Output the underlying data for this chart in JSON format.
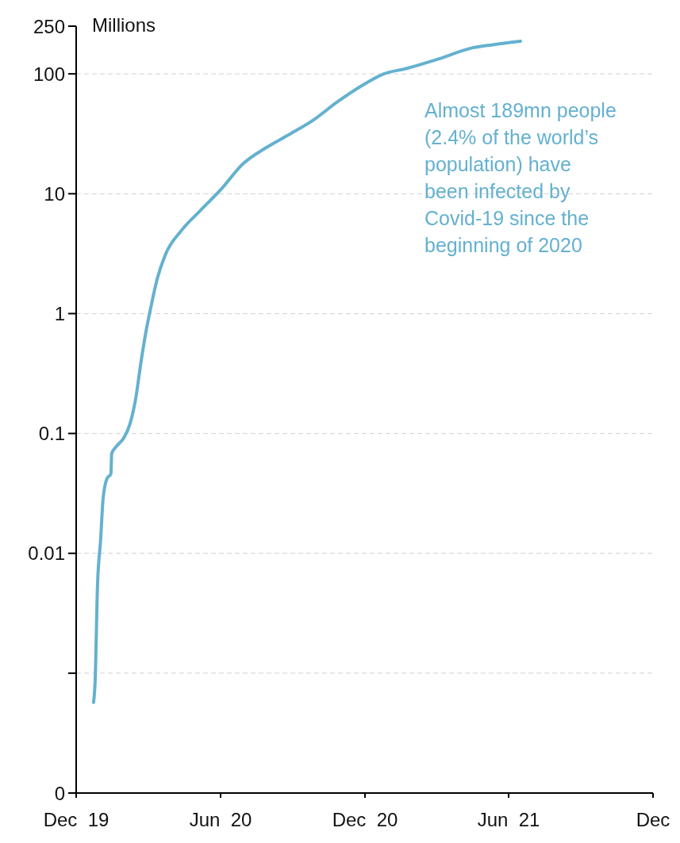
{
  "chart_data": {
    "type": "line",
    "ylabel": "Millions",
    "log": "y",
    "annotations": [
      "Almost 189mn people\n(2.4% of the world’s\npopulation) have\nbeen infected by\nCovid-19 since the\nbeginning of 2020"
    ],
    "x": [
      "2019-12-23",
      "2019-12-25",
      "2019-12-28",
      "2020-01-01",
      "2020-01-04",
      "2020-01-09",
      "2020-01-14",
      "2020-01-15",
      "2020-01-21",
      "2020-01-30",
      "2020-02-07",
      "2020-02-14",
      "2020-02-22",
      "2020-02-28",
      "2020-03-03",
      "2020-03-13",
      "2020-03-23",
      "2020-04-12",
      "2020-05-06",
      "2020-05-31",
      "2020-06-30",
      "2020-07-29",
      "2020-08-28",
      "2020-09-27",
      "2020-10-26",
      "2020-11-30",
      "2020-12-25",
      "2021-01-23",
      "2021-03-04",
      "2021-04-13",
      "2021-05-12",
      "2021-06-16"
    ],
    "series": [
      {
        "color": "#64b1cf",
        "values": [
          0.00057,
          0.00085,
          0.0053,
          0.013,
          0.028,
          0.042,
          0.046,
          0.068,
          0.078,
          0.091,
          0.119,
          0.188,
          0.43,
          0.74,
          1,
          1.98,
          3.1,
          4.9,
          7.2,
          10.6,
          17.9,
          24.3,
          31.5,
          41.4,
          57.8,
          82,
          100,
          111,
          133,
          163,
          175,
          187
        ]
      }
    ],
    "xlim": [
      "2019-12-01",
      "2021-12-01"
    ],
    "xticks": [
      {
        "value": "2019-12-01",
        "label": "Dec  19"
      },
      {
        "value": "2020-06-01",
        "label": "Jun  20"
      },
      {
        "value": "2020-12-01",
        "label": "Dec  20"
      },
      {
        "value": "2021-06-01",
        "label": "Jun  21"
      },
      {
        "value": "2021-12-01",
        "label": "Dec"
      }
    ],
    "ylim": [
      0.0001,
      250
    ],
    "yticks": [
      {
        "value": 0.0001,
        "label": "0"
      },
      {
        "value": 0.001,
        "label": null
      },
      0.01,
      0.1,
      1,
      10,
      100,
      250
    ],
    "grid": "y",
    "marker": "none",
    "line_style": "solid"
  }
}
